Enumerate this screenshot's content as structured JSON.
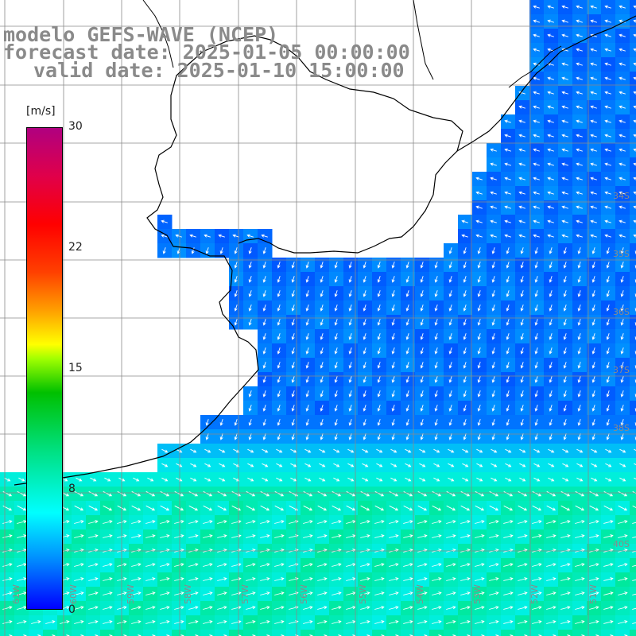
{
  "header": {
    "model": "modelo GEFS-WAVE (NCEP)",
    "forecast": "forecast date: 2025-01-05 00:00:00",
    "valid": "valid date: 2025-01-10 15:00:00"
  },
  "colorbar": {
    "unit": "[m/s]",
    "min": 0,
    "max": 30,
    "ticks": [
      "30",
      "22",
      "15",
      "8",
      "0"
    ]
  },
  "map": {
    "lon_range": [
      -63,
      -47
    ],
    "lat_range": [
      -40.8,
      -25.8
    ],
    "lat_labels": [
      "34S",
      "35S",
      "36S",
      "37S",
      "38S",
      "40S"
    ],
    "lon_labels": [
      "61W",
      "60W",
      "59W",
      "58W",
      "57W",
      "56W",
      "55W",
      "54W",
      "53W",
      "52W",
      "51W"
    ]
  },
  "colors": {
    "coast": "#000000",
    "grid": "#888888",
    "label": "#8a8a8a",
    "arrow": "#ffffff"
  }
}
